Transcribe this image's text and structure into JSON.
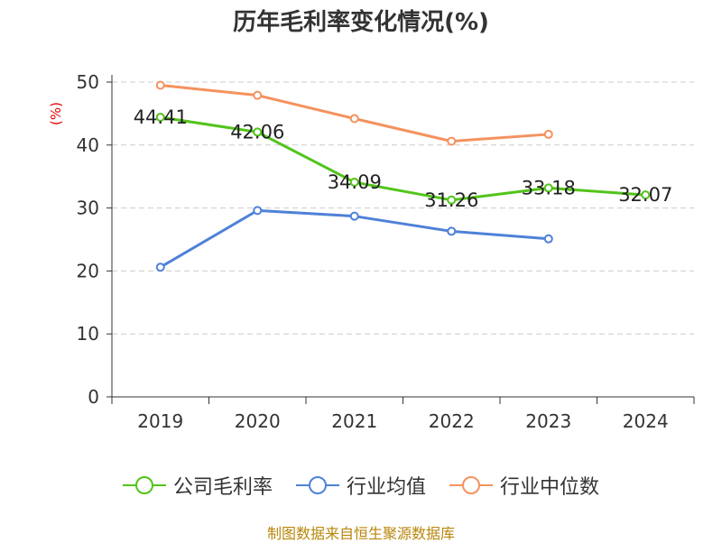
{
  "title": "历年毛利率变化情况(%)",
  "unit_label": "(%)",
  "footer": "制图数据来自恒生聚源数据库",
  "chart_data": {
    "type": "line",
    "title": "历年毛利率变化情况(%)",
    "ylabel": "(%)",
    "xlabel": "",
    "categories": [
      "2019",
      "2020",
      "2021",
      "2022",
      "2023",
      "2024"
    ],
    "ylim": [
      0,
      50
    ],
    "yticks": [
      0,
      10,
      20,
      30,
      40,
      50
    ],
    "grid": "horizontal dashed",
    "legend": "bottom",
    "series": [
      {
        "name": "公司毛利率",
        "color": "#52c41a",
        "values": [
          44.41,
          42.06,
          34.09,
          31.26,
          33.18,
          32.07
        ],
        "data_labels": true
      },
      {
        "name": "行业均值",
        "color": "#4f81d8",
        "values": [
          20.6,
          29.6,
          28.7,
          26.3,
          25.1,
          null
        ],
        "data_labels": false
      },
      {
        "name": "行业中位数",
        "color": "#f4925e",
        "values": [
          49.5,
          47.9,
          44.2,
          40.6,
          41.7,
          null
        ],
        "data_labels": false
      }
    ]
  }
}
